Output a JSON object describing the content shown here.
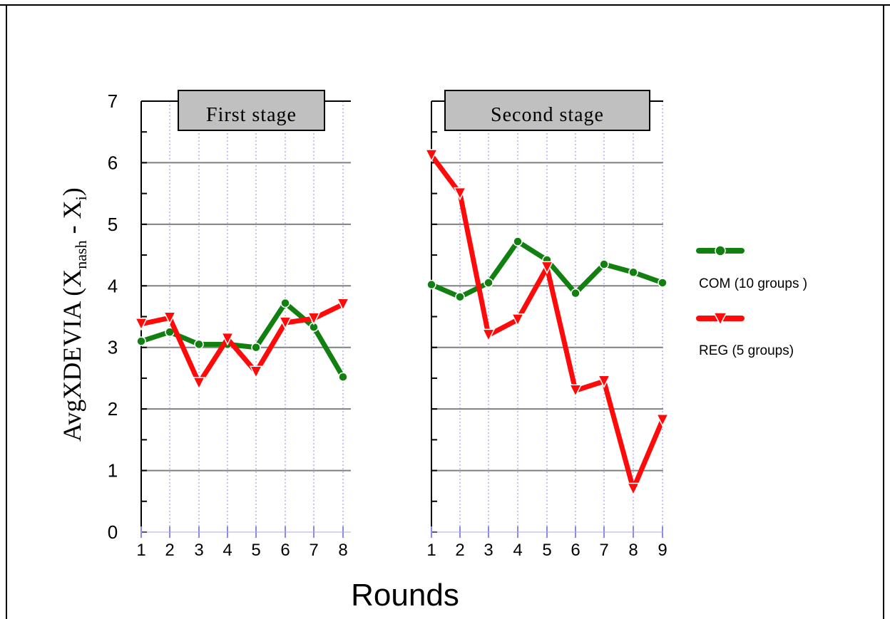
{
  "chart_data": {
    "type": "line",
    "ylabel_main": "AvgXDEVIA (X",
    "ylabel_sub1": "nash",
    "ylabel_mid": " - X",
    "ylabel_sub2": "i",
    "ylabel_end": ")",
    "xlabel": "Rounds",
    "ylim": [
      0,
      7
    ],
    "yticks": [
      "0",
      "1",
      "2",
      "3",
      "4",
      "5",
      "6",
      "7"
    ],
    "grid": true,
    "legend_position": "right",
    "colors": {
      "COM": "#118011",
      "REG": "#ff0a0a"
    },
    "series": [
      {
        "name": "COM (10 groups )",
        "marker": "circle"
      },
      {
        "name": "REG (5 groups)",
        "marker": "triangle-down"
      }
    ],
    "panels": [
      {
        "title": "First stage",
        "categories": [
          "1",
          "2",
          "3",
          "4",
          "5",
          "6",
          "7",
          "8"
        ],
        "values": {
          "COM": [
            3.1,
            3.25,
            3.05,
            3.05,
            3.0,
            3.72,
            3.33,
            2.52
          ],
          "REG": [
            3.38,
            3.48,
            2.42,
            3.14,
            2.6,
            3.4,
            3.47,
            3.7
          ]
        }
      },
      {
        "title": "Second stage",
        "categories": [
          "1",
          "2",
          "3",
          "4",
          "5",
          "6",
          "7",
          "8",
          "9"
        ],
        "values": {
          "COM": [
            4.02,
            3.82,
            4.05,
            4.72,
            4.42,
            3.88,
            4.35,
            4.22,
            4.05
          ],
          "REG": [
            6.12,
            5.5,
            3.2,
            3.45,
            4.3,
            2.3,
            2.45,
            0.7,
            1.82
          ]
        }
      }
    ]
  }
}
